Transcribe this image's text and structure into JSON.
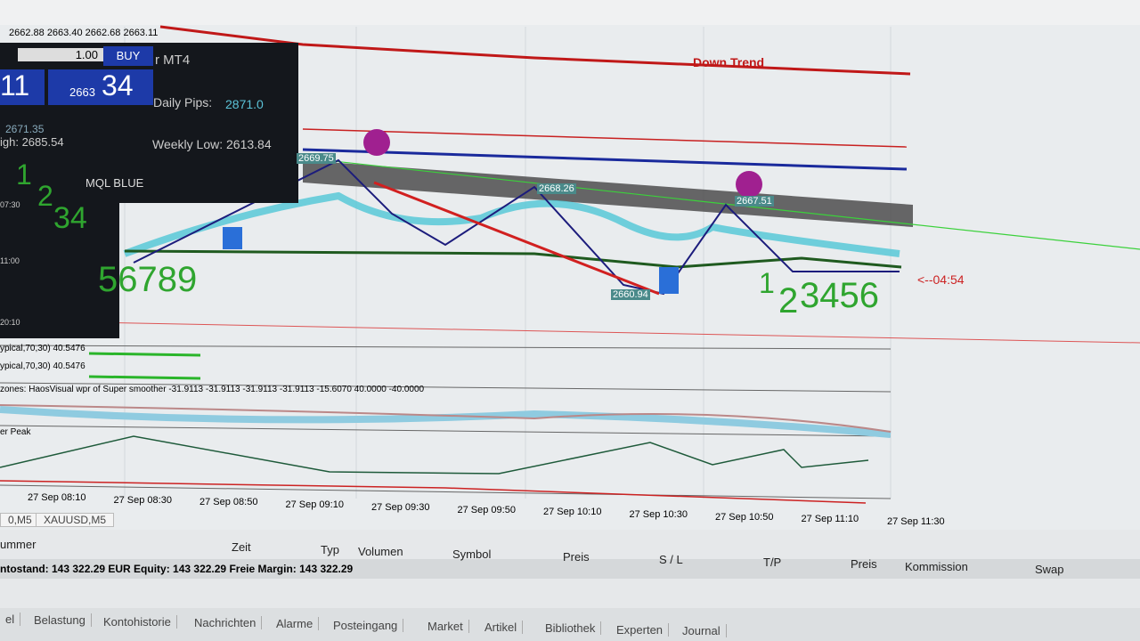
{
  "toolbar": {
    "prices": "2662.88 2663.40 2662.68 2663.11"
  },
  "trade_panel": {
    "lot": "1.00",
    "buy": "BUY",
    "bid_tail": "11",
    "ask_big": "2663",
    "ask_small": "34",
    "title": "r MT4",
    "daily_pips_label": "Daily Pips:",
    "daily_pips": "2871.0",
    "weekly_low": "Weekly Low: 2613.84",
    "high": "igh: 2685.54",
    "level": "2671.35",
    "mql": "MQL BLUE"
  },
  "chart": {
    "trend": "Down Trend",
    "labels": [
      "2669.75",
      "2668.26",
      "2667.51",
      "2660.94"
    ],
    "waves_left_a": "1",
    "waves_left_b": "2",
    "waves_left_c": "34",
    "waves_left_d": "56789",
    "waves_right_a": "1",
    "waves_right_b": "2",
    "waves_right_c": "3456",
    "timer": "<--04:54",
    "left_times": [
      "07:30",
      "11:00",
      "20:10"
    ]
  },
  "indicators": {
    "wpr1": "ypical,70,30) 40.5476",
    "wpr2": "ypical,70,30) 40.5476",
    "zones": "zones:  HaosVisual wpr of Super smoother -31.9113 -31.9113 -31.9113 -31.9113 -15.6070 40.0000 -40.0000",
    "peak": "er Peak"
  },
  "time_axis": [
    "27 Sep 08:10",
    "27 Sep 08:30",
    "27 Sep 08:50",
    "27 Sep 09:10",
    "27 Sep 09:30",
    "27 Sep 09:50",
    "27 Sep 10:10",
    "27 Sep 10:30",
    "27 Sep 10:50",
    "27 Sep 11:10",
    "27 Sep 11:30"
  ],
  "chart_tabs": [
    "0,M5",
    "XAUUSD,M5"
  ],
  "terminal": {
    "columns": [
      "ummer",
      "Zeit",
      "Typ",
      "Volumen",
      "Symbol",
      "Preis",
      "S / L",
      "T/P",
      "Preis",
      "Kommission",
      "Swap"
    ],
    "balance": "ntostand: 143 322.29 EUR  Equity: 143 322.29  Freie Margin: 143 322.29"
  },
  "bottom_tabs": [
    "el",
    "Belastung",
    "Kontohistorie",
    "Nachrichten",
    "Alarme",
    "Posteingang",
    "Market",
    "Artikel",
    "Bibliothek",
    "Experten",
    "Journal"
  ]
}
